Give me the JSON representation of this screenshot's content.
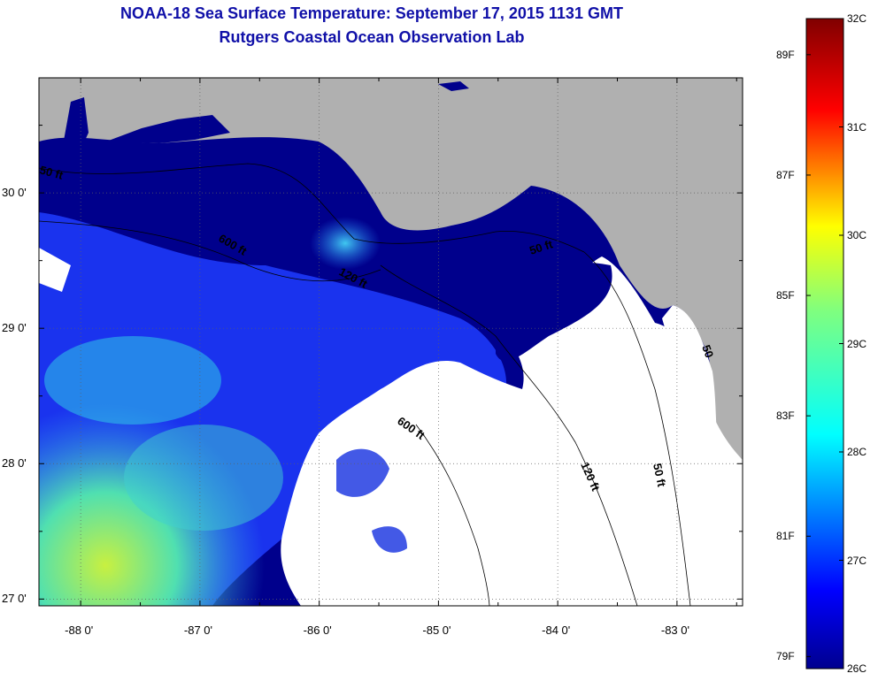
{
  "title": "NOAA-18 Sea Surface Temperature:  September 17, 2015 1131 GMT",
  "subtitle": "Rutgers Coastal Ocean Observation Lab",
  "map": {
    "lat_labels": [
      {
        "value": 30,
        "text": "30 0'"
      },
      {
        "value": 29,
        "text": "29 0'"
      },
      {
        "value": 28,
        "text": "28 0'"
      },
      {
        "value": 27,
        "text": "27 0'"
      }
    ],
    "lon_labels": [
      {
        "value": -88,
        "text": "-88 0'"
      },
      {
        "value": -87,
        "text": "-87 0'"
      },
      {
        "value": -86,
        "text": "-86 0'"
      },
      {
        "value": -85,
        "text": "-85 0'"
      },
      {
        "value": -84,
        "text": "-84 0'"
      },
      {
        "value": -83,
        "text": "-83 0'"
      }
    ],
    "lon_range": [
      -88.35,
      -82.45
    ],
    "lat_range": [
      26.95,
      30.85
    ],
    "contour_labels": [
      "50 ft",
      "600 ft",
      "120 ft",
      "50 ft",
      "600 ft",
      "120 ft",
      "50 ft",
      "50"
    ],
    "colors": {
      "land": "#b0b0b0",
      "cloud": "#ffffff",
      "water_cold": "#00008c"
    }
  },
  "colorbar": {
    "celsius": [
      {
        "value": 32,
        "text": "32C"
      },
      {
        "value": 31,
        "text": "31C"
      },
      {
        "value": 30,
        "text": "30C"
      },
      {
        "value": 29,
        "text": "29C"
      },
      {
        "value": 28,
        "text": "28C"
      },
      {
        "value": 27,
        "text": "27C"
      },
      {
        "value": 26,
        "text": "26C"
      }
    ],
    "fahrenheit": [
      {
        "value": 89,
        "text": "89F"
      },
      {
        "value": 87,
        "text": "87F"
      },
      {
        "value": 85,
        "text": "85F"
      },
      {
        "value": 83,
        "text": "83F"
      },
      {
        "value": 81,
        "text": "81F"
      },
      {
        "value": 79,
        "text": "79F"
      }
    ],
    "range_c": [
      26,
      32
    ]
  }
}
